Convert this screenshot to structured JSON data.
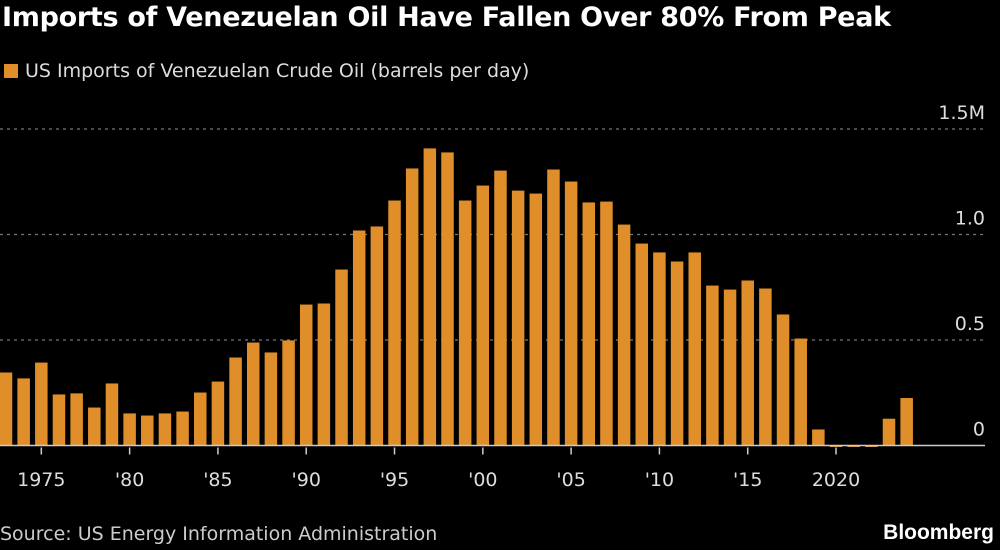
{
  "title": "Imports of Venezuelan Oil Have Fallen Over 80% From Peak",
  "source": "Source: US Energy Information Administration",
  "brand": "Bloomberg",
  "chart_data": {
    "type": "bar",
    "title": "Imports of Venezuelan Oil Have Fallen Over 80% From Peak",
    "color": "#e08e2a",
    "legend": "top-left",
    "series": [
      {
        "name": "US Imports of Venezuelan Crude Oil (barrels per day)"
      }
    ],
    "x": [
      1973,
      1974,
      1975,
      1976,
      1977,
      1978,
      1979,
      1980,
      1981,
      1982,
      1983,
      1984,
      1985,
      1986,
      1987,
      1988,
      1989,
      1990,
      1991,
      1992,
      1993,
      1994,
      1995,
      1996,
      1997,
      1998,
      1999,
      2000,
      2001,
      2002,
      2003,
      2004,
      2005,
      2006,
      2007,
      2008,
      2009,
      2010,
      2011,
      2012,
      2013,
      2014,
      2015,
      2016,
      2017,
      2018,
      2019,
      2020,
      2021,
      2022,
      2023,
      2024
    ],
    "values": [
      0.346,
      0.318,
      0.393,
      0.242,
      0.247,
      0.18,
      0.294,
      0.152,
      0.142,
      0.152,
      0.161,
      0.251,
      0.303,
      0.417,
      0.488,
      0.441,
      0.498,
      0.668,
      0.673,
      0.834,
      1.019,
      1.038,
      1.161,
      1.313,
      1.408,
      1.389,
      1.161,
      1.232,
      1.303,
      1.208,
      1.194,
      1.308,
      1.251,
      1.152,
      1.156,
      1.047,
      0.957,
      0.915,
      0.872,
      0.915,
      0.758,
      0.739,
      0.782,
      0.744,
      0.621,
      0.507,
      0.076,
      0,
      0,
      0,
      0.127,
      0.225
    ],
    "unit": "million barrels per day",
    "ylim": [
      0,
      1.5
    ],
    "y_ticks": [
      {
        "value": 0,
        "label": "0"
      },
      {
        "value": 0.5,
        "label": "0.5"
      },
      {
        "value": 1.0,
        "label": "1.0"
      },
      {
        "value": 1.5,
        "label": "1.5M"
      }
    ],
    "x_ticks": [
      {
        "value": 1975,
        "label": "1975"
      },
      {
        "value": 1980,
        "label": "'80"
      },
      {
        "value": 1985,
        "label": "'85"
      },
      {
        "value": 1990,
        "label": "'90"
      },
      {
        "value": 1995,
        "label": "'95"
      },
      {
        "value": 2000,
        "label": "'00"
      },
      {
        "value": 2005,
        "label": "'05"
      },
      {
        "value": 2010,
        "label": "'10"
      },
      {
        "value": 2015,
        "label": "'15"
      },
      {
        "value": 2020,
        "label": "2020"
      }
    ],
    "grid": true
  }
}
